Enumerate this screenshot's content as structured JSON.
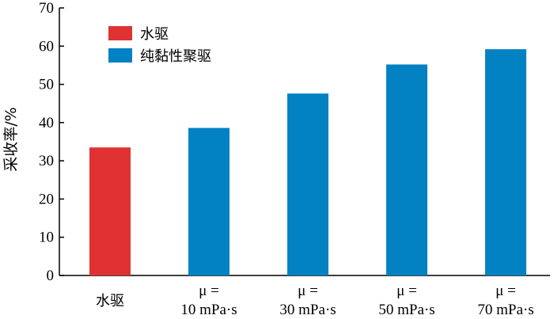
{
  "colors": {
    "water": "#e03232",
    "polymer": "#0282c3"
  },
  "chart_data": {
    "type": "bar",
    "ylabel": "采收率/%",
    "ylim": [
      0,
      70
    ],
    "yticks": [
      0,
      10,
      20,
      30,
      40,
      50,
      60,
      70
    ],
    "grid": false,
    "legend_position": "top-left",
    "legend": [
      {
        "label": "水驱",
        "color": "#e03232"
      },
      {
        "label": "纯黏性聚驱",
        "color": "#0282c3"
      }
    ],
    "categories": [
      {
        "line1": "水驱",
        "line2": ""
      },
      {
        "line1": "μ =",
        "line2": "10 mPa·s"
      },
      {
        "line1": "μ =",
        "line2": "30 mPa·s"
      },
      {
        "line1": "μ =",
        "line2": "50 mPa·s"
      },
      {
        "line1": "μ =",
        "line2": "70 mPa·s"
      }
    ],
    "values": [
      33.5,
      38.6,
      47.6,
      55.2,
      59.2
    ],
    "bar_series": [
      0,
      1,
      1,
      1,
      1
    ]
  }
}
